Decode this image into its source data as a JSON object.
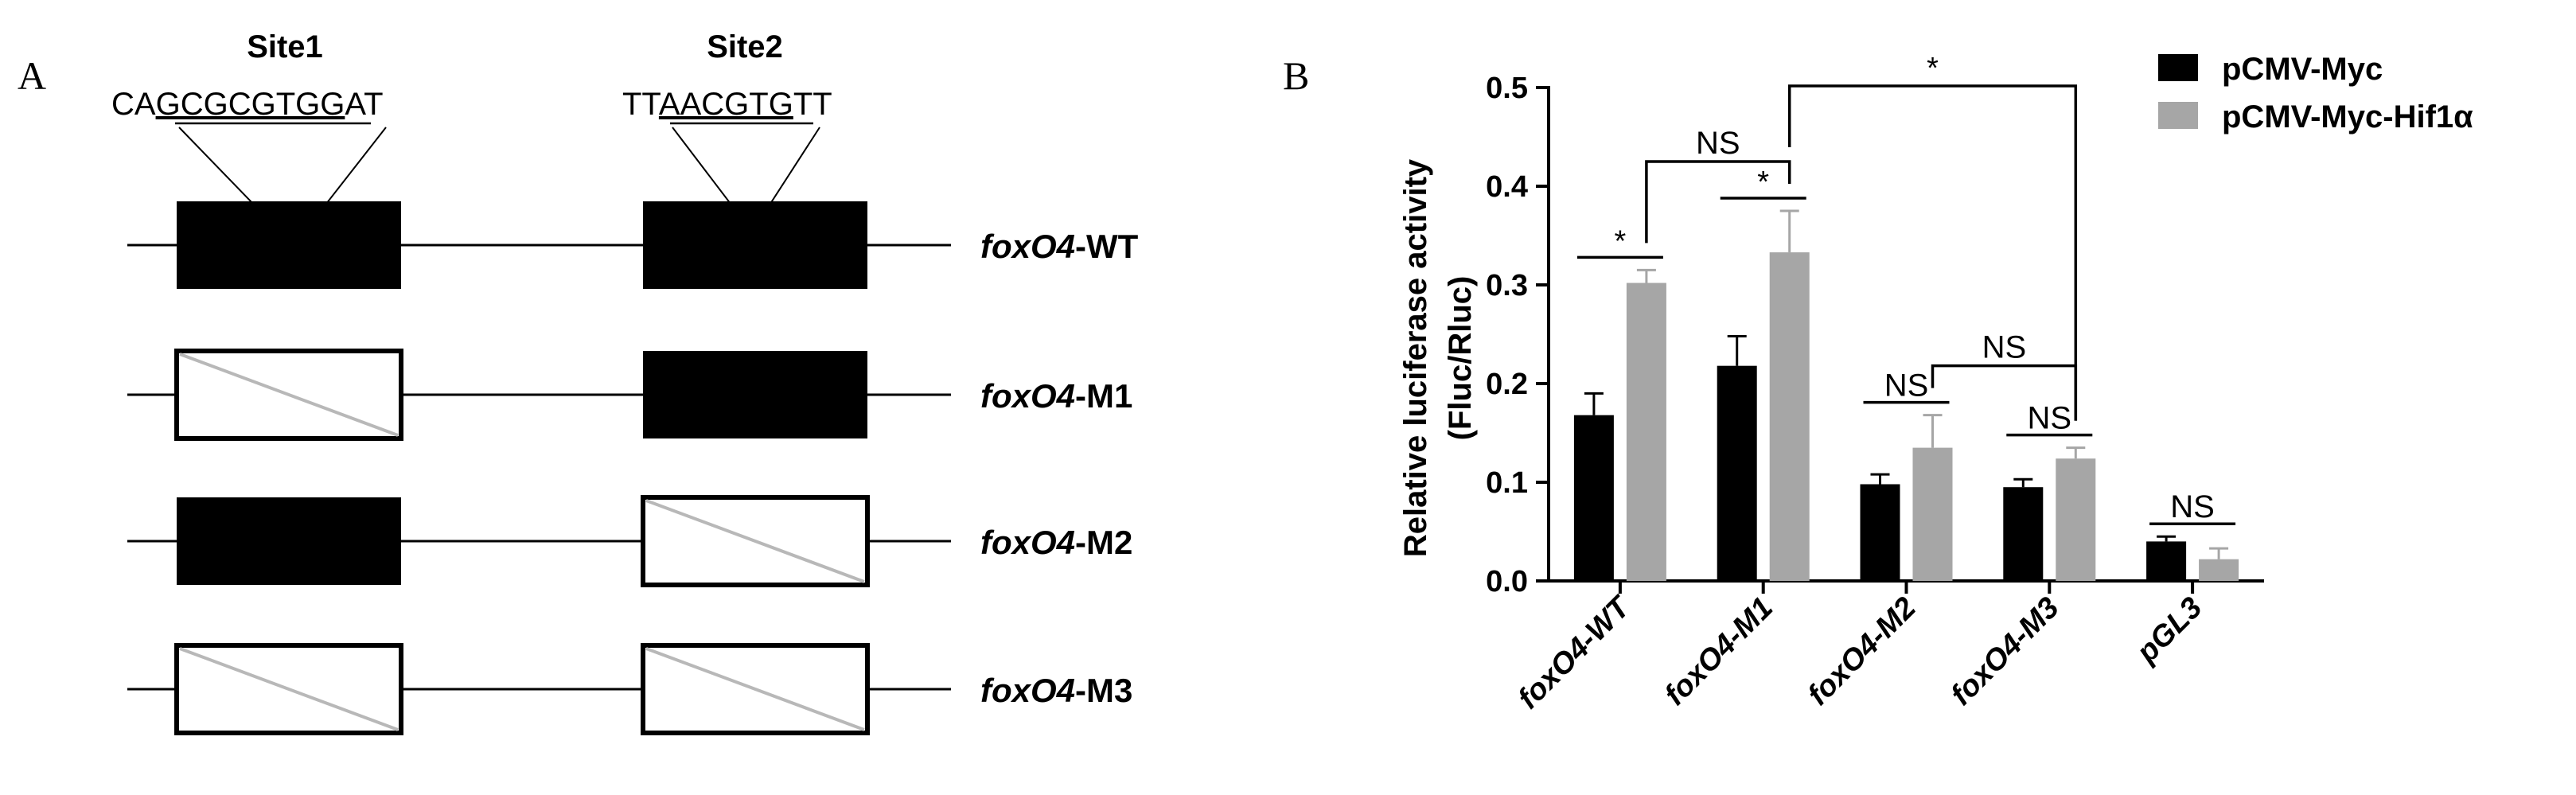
{
  "panel_a": {
    "panel_label": "A",
    "sites": [
      {
        "name": "Site1",
        "seq_pre": "CA",
        "seq_core": "GCGCGTGG",
        "seq_post": "AT"
      },
      {
        "name": "Site2",
        "seq_pre": "TT",
        "seq_core": "AACGTG",
        "seq_post": "TT"
      }
    ],
    "constructs": [
      {
        "gene": "foxO4",
        "suffix": "-WT",
        "site1_intact": true,
        "site2_intact": true
      },
      {
        "gene": "foxO4",
        "suffix": "-M1",
        "site1_intact": false,
        "site2_intact": true
      },
      {
        "gene": "foxO4",
        "suffix": "-M2",
        "site1_intact": true,
        "site2_intact": false
      },
      {
        "gene": "foxO4",
        "suffix": "-M3",
        "site1_intact": false,
        "site2_intact": false
      }
    ]
  },
  "panel_b": {
    "panel_label": "B",
    "chart_data": {
      "type": "bar",
      "ylabel_line1": "Relative luciferase activity",
      "ylabel_line2": "(Fluc/Rluc)",
      "ylim": [
        0,
        0.5
      ],
      "yticks": [
        "0.0",
        "0.1",
        "0.2",
        "0.3",
        "0.4",
        "0.5"
      ],
      "categories": [
        "foxO4-WT",
        "foxO4-M1",
        "foxO4-M2",
        "foxO4-M3",
        "pGL3"
      ],
      "series": [
        {
          "name": "pCMV-Myc",
          "color": "#000000",
          "values": [
            0.168,
            0.218,
            0.098,
            0.095,
            0.04
          ],
          "errors": [
            0.022,
            0.03,
            0.01,
            0.008,
            0.005
          ]
        },
        {
          "name": "pCMV-Myc-Hif1α",
          "color": "#a6a6a6",
          "values": [
            0.302,
            0.333,
            0.135,
            0.124,
            0.022
          ],
          "errors": [
            0.013,
            0.042,
            0.033,
            0.011,
            0.011
          ]
        }
      ],
      "legend_position": "top-right",
      "annotations": [
        {
          "text": "*",
          "type": "pair",
          "category": 0
        },
        {
          "text": "*",
          "type": "pair",
          "category": 1
        },
        {
          "text": "NS",
          "type": "pair",
          "category": 2
        },
        {
          "text": "NS",
          "type": "pair",
          "category": 3
        },
        {
          "text": "NS",
          "type": "pair",
          "category": 4
        },
        {
          "text": "NS",
          "type": "between",
          "from": 0,
          "to": 1
        },
        {
          "text": "NS",
          "type": "between",
          "from": 2,
          "to": 3
        },
        {
          "text": "*",
          "type": "between",
          "from": 1,
          "to": 3
        }
      ]
    }
  }
}
